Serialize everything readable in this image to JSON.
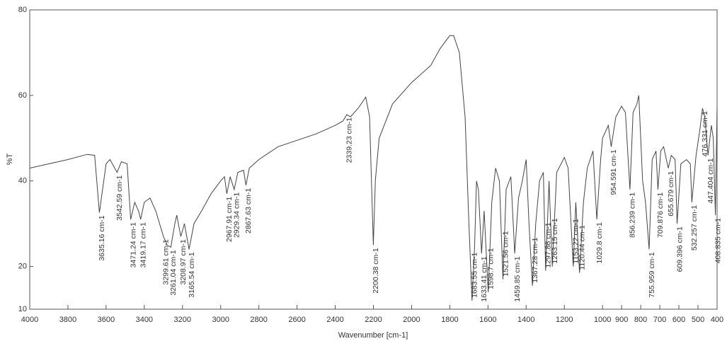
{
  "chart_data": {
    "type": "line",
    "ylabel": "%T",
    "xlabel": "Wavenumber [cm-1]",
    "xlim": [
      4000,
      400
    ],
    "ylim": [
      10,
      80
    ],
    "xticks": [
      4000,
      3800,
      3600,
      3400,
      3200,
      3000,
      2800,
      2600,
      2400,
      2200,
      2000,
      1800,
      1600,
      1400,
      1200,
      1000,
      900,
      800,
      700,
      600,
      500,
      400
    ],
    "yticks": [
      10,
      20,
      40,
      60,
      80
    ],
    "color": "#444444",
    "x": [
      4000,
      3900,
      3800,
      3700,
      3660,
      3635.16,
      3600,
      3580,
      3542.59,
      3520,
      3490,
      3471.24,
      3450,
      3430,
      3419.17,
      3400,
      3370,
      3340,
      3299.61,
      3280,
      3261.04,
      3240,
      3230,
      3208.97,
      3190,
      3165.54,
      3140,
      3100,
      3050,
      3000,
      2980,
      2967.91,
      2950,
      2929.34,
      2910,
      2880,
      2867.63,
      2850,
      2800,
      2700,
      2600,
      2500,
      2400,
      2360,
      2339.23,
      2320,
      2280,
      2240,
      2220,
      2200.38,
      2190,
      2170,
      2100,
      2000,
      1900,
      1850,
      1800,
      1780,
      1750,
      1720,
      1700,
      1683.55,
      1670,
      1660,
      1650,
      1633.41,
      1620,
      1598.7,
      1580,
      1560,
      1540,
      1521.56,
      1505,
      1480,
      1459.85,
      1440,
      1420,
      1400,
      1385,
      1367.28,
      1350,
      1330,
      1310,
      1297.86,
      1280,
      1263.15,
      1240,
      1200,
      1180,
      1153.22,
      1140,
      1120.44,
      1100,
      1080,
      1050,
      1029.8,
      1010,
      1000,
      970,
      954.591,
      930,
      900,
      880,
      856.239,
      840,
      820,
      810,
      790,
      775,
      755.959,
      740,
      720,
      709.876,
      695,
      680,
      655.679,
      640,
      620,
      609.396,
      590,
      560,
      540,
      532.257,
      510,
      490,
      476.331,
      465,
      447.404,
      430,
      420,
      408.835,
      400
    ],
    "values": [
      43,
      44,
      45,
      46.2,
      46,
      32.6,
      44,
      45,
      42,
      44.5,
      44,
      31,
      35,
      33,
      31,
      35,
      36,
      33,
      27,
      25,
      24.5,
      30,
      32,
      27,
      30,
      24,
      30,
      33,
      37,
      40,
      41,
      37,
      41,
      38,
      42,
      42.5,
      39,
      43,
      45,
      48,
      49.5,
      51,
      53,
      54,
      55.5,
      55,
      57,
      59.6,
      55,
      25,
      40,
      50,
      58,
      63,
      67,
      71,
      74,
      74,
      70,
      55,
      30,
      12,
      25,
      40,
      38,
      23,
      33,
      14,
      35,
      43,
      40,
      17,
      38,
      41,
      23,
      36,
      40,
      45,
      30,
      15.5,
      30,
      40,
      42,
      19,
      40,
      20,
      42,
      45.5,
      43,
      20,
      35,
      18.5,
      35,
      43,
      47,
      31,
      45,
      50,
      53,
      48,
      55,
      57.5,
      56,
      38,
      56,
      58,
      60,
      40,
      35,
      24,
      45,
      47,
      38,
      47,
      48,
      43,
      46,
      45,
      30,
      44,
      45,
      44,
      35,
      46,
      52,
      57,
      55,
      46,
      53,
      50,
      32,
      57
    ],
    "peaks": [
      {
        "x": 3635.16,
        "label": "3635.16 cm-1"
      },
      {
        "x": 3542.59,
        "label": "3542.59 cm-1"
      },
      {
        "x": 3471.24,
        "label": "3471.24 cm-1"
      },
      {
        "x": 3419.17,
        "label": "3419.17 cm-1"
      },
      {
        "x": 3299.61,
        "label": "3299.61 cm-1"
      },
      {
        "x": 3261.04,
        "label": "3261.04 cm-1"
      },
      {
        "x": 3208.97,
        "label": "3208.97 cm-1"
      },
      {
        "x": 3165.54,
        "label": "3165.54 cm-1"
      },
      {
        "x": 2967.91,
        "label": "2967.91 cm-1"
      },
      {
        "x": 2929.34,
        "label": "2929.34 cm-1"
      },
      {
        "x": 2867.63,
        "label": "2867.63 cm-1"
      },
      {
        "x": 2339.23,
        "label": "2339.23 cm-1"
      },
      {
        "x": 2200.38,
        "label": "2200.38 cm-1"
      },
      {
        "x": 1683.55,
        "label": "1683.55 cm-1"
      },
      {
        "x": 1633.41,
        "label": "1633.41 cm-1"
      },
      {
        "x": 1598.7,
        "label": "1598.7 cm-1"
      },
      {
        "x": 1521.56,
        "label": "1521.56 cm-1"
      },
      {
        "x": 1459.85,
        "label": "1459.85 cm-1"
      },
      {
        "x": 1367.28,
        "label": "1367.28 cm-1"
      },
      {
        "x": 1297.86,
        "label": "1297.86 cm-1"
      },
      {
        "x": 1263.15,
        "label": "1263.15 cm-1"
      },
      {
        "x": 1153.22,
        "label": "1153.22 cm-1"
      },
      {
        "x": 1120.44,
        "label": "1120.44 cm-1"
      },
      {
        "x": 1029.8,
        "label": "1029.8 cm-1"
      },
      {
        "x": 954.591,
        "label": "954.591 cm-1"
      },
      {
        "x": 856.239,
        "label": "856.239 cm-1"
      },
      {
        "x": 755.959,
        "label": "755.959 cm-1"
      },
      {
        "x": 709.876,
        "label": "709.876 cm-1"
      },
      {
        "x": 655.679,
        "label": "655.679 cm-1"
      },
      {
        "x": 609.396,
        "label": "609.396 cm-1"
      },
      {
        "x": 532.257,
        "label": "532.257 cm-1"
      },
      {
        "x": 476.331,
        "label": "476.331 cm-1"
      },
      {
        "x": 447.404,
        "label": "447.404 cm-1"
      },
      {
        "x": 408.835,
        "label": "408.835 cm-1"
      }
    ]
  }
}
